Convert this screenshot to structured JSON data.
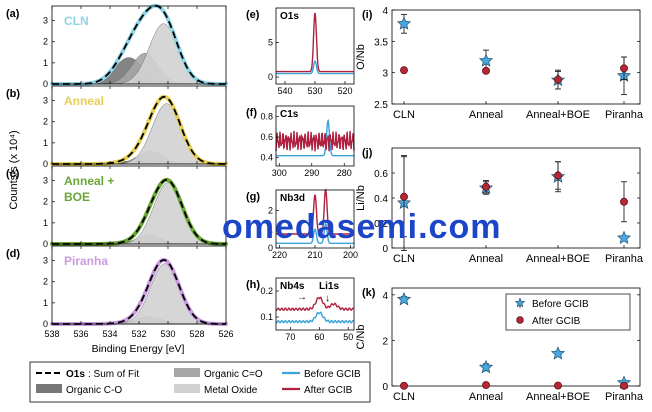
{
  "watermark": "omedasemi.com",
  "xps": {
    "panel_letters": [
      "(a)",
      "(b)",
      "(c)",
      "(d)"
    ],
    "sample_names": [
      "CLN",
      "Anneal",
      "Anneal +",
      "Piranha"
    ],
    "sample_name_line2": "BOE",
    "sample_colors": [
      "#8fd3e6",
      "#e6cf57",
      "#6aa635",
      "#c99be0"
    ],
    "ylabel": "Counts/s (x 10⁴)",
    "xlabel": "Binding Energy [eV]",
    "x_ticks": [
      538,
      536,
      534,
      532,
      530,
      528,
      526
    ],
    "y_ticks": [
      0,
      1,
      2,
      3
    ],
    "xlim": [
      538,
      526
    ],
    "legend": {
      "fit": "O1s: Sum of Fit",
      "organic_co": "Organic C-O",
      "organic_ceo": "Organic C=O",
      "metal_oxide": "Metal Oxide",
      "before": "Before GCIB",
      "after": "After GCIB"
    }
  },
  "mid": {
    "panels": [
      {
        "letter": "(e)",
        "label": "O1s",
        "ticks_x": [
          540,
          530,
          520
        ],
        "ticks_y": [
          0,
          5
        ],
        "xlim": [
          543,
          517
        ]
      },
      {
        "letter": "(f)",
        "label": "C1s",
        "ticks_x": [
          300,
          290,
          280
        ],
        "ticks_y": [
          0.4,
          0.6,
          0.8
        ],
        "xlim": [
          301,
          277
        ]
      },
      {
        "letter": "(g)",
        "label": "Nb3d",
        "ticks_x": [
          220,
          210,
          200
        ],
        "ticks_y": [
          0,
          1,
          2
        ],
        "xlim": [
          221,
          199
        ]
      },
      {
        "letter": "(h)",
        "label": "Nb4s",
        "label2": "Li1s",
        "ticks_x": [
          70,
          60,
          50
        ],
        "ticks_y": [
          0.1,
          0.2
        ],
        "xlim": [
          75,
          48
        ]
      }
    ]
  },
  "ratios": {
    "categories": [
      "CLN",
      "Anneal",
      "Anneal+BOE",
      "Piranha"
    ],
    "legend_before": "Before GCIB",
    "legend_after": "After GCIB"
  },
  "chart_data": [
    {
      "type": "line",
      "id": "xps-spectra",
      "xlabel": "Binding Energy [eV]",
      "ylabel": "Counts/s (x 10⁴)",
      "xlim": [
        538,
        526
      ],
      "ylim": [
        0,
        3.5
      ],
      "series": [
        {
          "name": "CLN",
          "components": {
            "metal_oxide": {
              "center": 530.3,
              "amp": 2.85,
              "width": 1.0
            },
            "organic_ceo": {
              "center": 531.6,
              "amp": 1.45,
              "width": 0.9
            },
            "organic_co": {
              "center": 532.7,
              "amp": 1.25,
              "width": 1.0
            }
          }
        },
        {
          "name": "Anneal",
          "components": {
            "metal_oxide": {
              "center": 530.1,
              "amp": 2.85,
              "width": 1.0
            },
            "organic_ceo": {
              "center": 531.2,
              "amp": 0.6,
              "width": 0.9
            },
            "organic_co": {
              "center": 532.3,
              "amp": 0.15,
              "width": 1.0
            }
          }
        },
        {
          "name": "Anneal + BOE",
          "components": {
            "metal_oxide": {
              "center": 530.0,
              "amp": 2.9,
              "width": 1.0
            },
            "organic_ceo": {
              "center": 531.3,
              "amp": 0.45,
              "width": 0.8
            },
            "organic_co": {
              "center": 532.4,
              "amp": 0.05,
              "width": 1.0
            }
          }
        },
        {
          "name": "Piranha",
          "components": {
            "metal_oxide": {
              "center": 530.2,
              "amp": 2.85,
              "width": 1.0
            },
            "organic_ceo": {
              "center": 531.3,
              "amp": 0.35,
              "width": 0.9
            },
            "organic_co": {
              "center": 532.5,
              "amp": 0.05,
              "width": 1.0
            }
          }
        }
      ]
    },
    {
      "type": "line",
      "id": "core-levels",
      "series": [
        {
          "name": "Before GCIB",
          "panel": "O1s",
          "peaks": [
            {
              "x": 530,
              "h": 1.8
            }
          ],
          "base": 0.5
        },
        {
          "name": "After GCIB",
          "panel": "O1s",
          "peaks": [
            {
              "x": 530,
              "h": 8.5
            }
          ],
          "base": 0.8
        },
        {
          "name": "Before GCIB",
          "panel": "C1s",
          "peaks": [
            {
              "x": 285,
              "h": 0.34
            }
          ],
          "base": 0.42
        },
        {
          "name": "After GCIB",
          "panel": "C1s",
          "peaks": [],
          "base": 0.56
        },
        {
          "name": "Before GCIB",
          "panel": "Nb3d",
          "peaks": [
            {
              "x": 207,
              "h": 1.05
            },
            {
              "x": 210,
              "h": 0.75
            }
          ],
          "base": 0.25
        },
        {
          "name": "After GCIB",
          "panel": "Nb3d",
          "peaks": [
            {
              "x": 207,
              "h": 2.4
            },
            {
              "x": 210,
              "h": 2.1
            }
          ],
          "base": 0.75
        },
        {
          "name": "Before GCIB",
          "panel": "Nb4s",
          "peaks": [
            {
              "x": 60,
              "h": 0.035
            }
          ],
          "base": 0.082
        },
        {
          "name": "After GCIB",
          "panel": "Nb4s",
          "peaks": [
            {
              "x": 60,
              "h": 0.045
            },
            {
              "x": 55,
              "h": 0.02
            }
          ],
          "base": 0.13
        }
      ]
    },
    {
      "type": "scatter",
      "id": "O-Nb",
      "ylabel": "O/Nb",
      "ylim": [
        2.5,
        4
      ],
      "yticks": [
        2.5,
        3,
        3.5,
        4
      ],
      "categories": [
        "CLN",
        "Anneal",
        "Anneal+BOE",
        "Piranha"
      ],
      "series": [
        {
          "name": "Before GCIB",
          "values": [
            3.78,
            3.19,
            2.88,
            2.95
          ],
          "errors": [
            0.15,
            0.17,
            0.14,
            0.3
          ]
        },
        {
          "name": "After GCIB",
          "values": [
            3.04,
            3.03,
            2.89,
            3.07
          ],
          "errors": [
            0,
            0.03,
            0.15,
            0.18
          ]
        }
      ]
    },
    {
      "type": "scatter",
      "id": "Li-Nb",
      "ylabel": "Li/Nb",
      "ylim": [
        0,
        0.8
      ],
      "yticks": [
        0,
        0.2,
        0.4,
        0.6
      ],
      "categories": [
        "CLN",
        "Anneal",
        "Anneal+BOE",
        "Piranha"
      ],
      "series": [
        {
          "name": "Before GCIB",
          "values": [
            0.36,
            0.48,
            0.57,
            0.08
          ],
          "errors": [
            0.38,
            0.05,
            0.12,
            0
          ]
        },
        {
          "name": "After GCIB",
          "values": [
            0.41,
            0.49,
            0.58,
            0.37
          ],
          "errors": [
            0.32,
            0.05,
            0.11,
            0.16
          ]
        }
      ]
    },
    {
      "type": "scatter",
      "id": "C-Nb",
      "ylabel": "C/Nb",
      "ylim": [
        0,
        4.3
      ],
      "yticks": [
        0,
        2,
        4
      ],
      "categories": [
        "CLN",
        "Anneal",
        "Anneal+BOE",
        "Piranha"
      ],
      "series": [
        {
          "name": "Before GCIB",
          "values": [
            3.8,
            0.82,
            1.42,
            0.14
          ],
          "errors": [
            0.12,
            0.15,
            0.1,
            0.05
          ]
        },
        {
          "name": "After GCIB",
          "values": [
            0.01,
            0.04,
            0.02,
            0.01
          ],
          "errors": [
            0,
            0,
            0,
            0
          ]
        }
      ]
    }
  ]
}
